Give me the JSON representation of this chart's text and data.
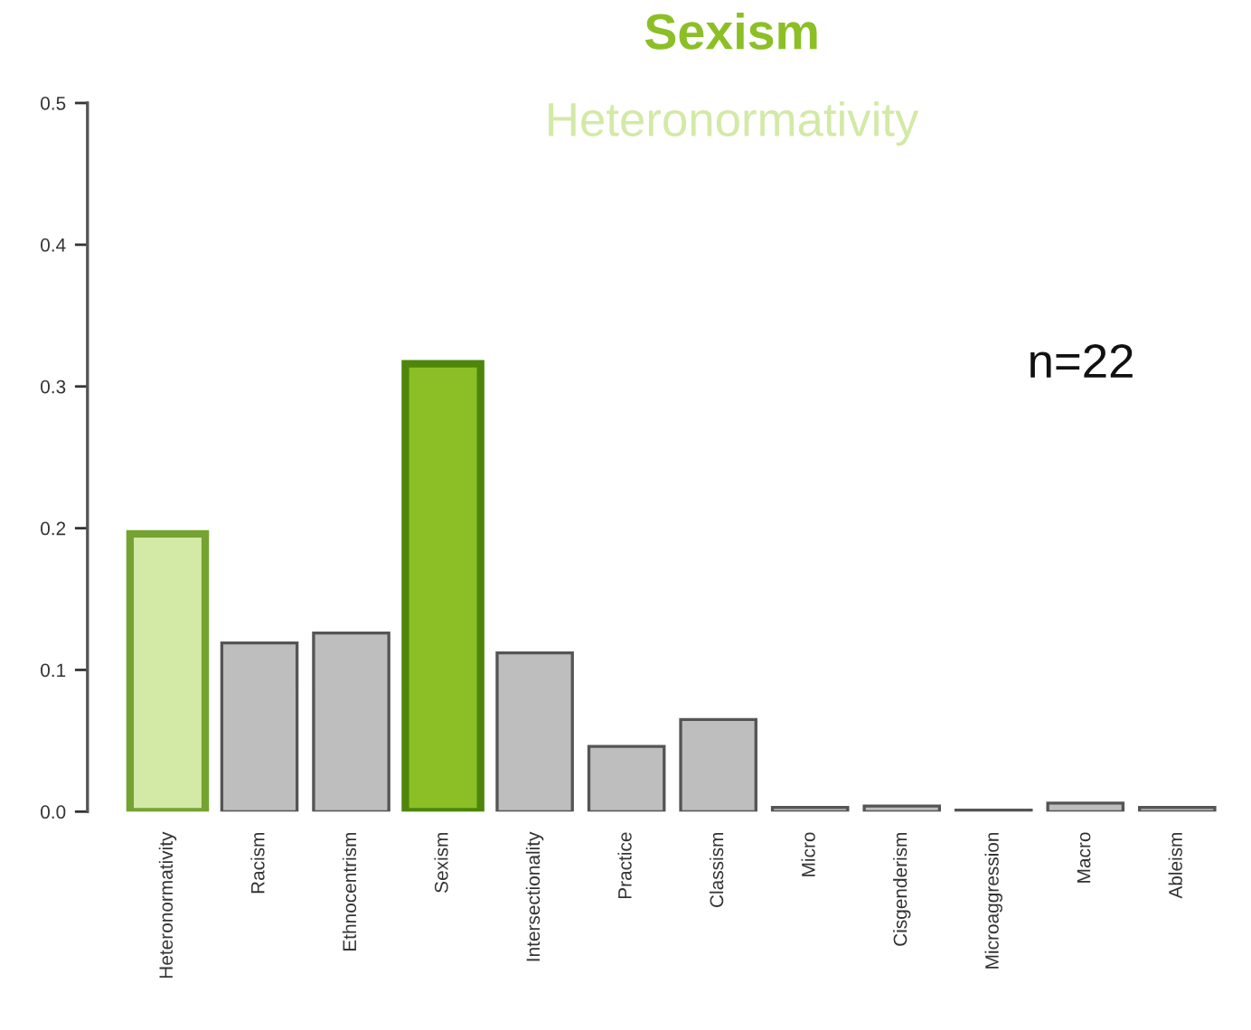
{
  "chart_data": {
    "type": "bar",
    "title": "Sexism",
    "subtitle": "Heteronormativity",
    "categories": [
      "Heteronormativity",
      "Racism",
      "Ethnocentrism",
      "Sexism",
      "Intersectionality",
      "Practice",
      "Classism",
      "Micro",
      "Cisgenderism",
      "Microaggression",
      "Macro",
      "Ableism"
    ],
    "values": [
      0.196,
      0.119,
      0.126,
      0.316,
      0.112,
      0.046,
      0.065,
      0.003,
      0.004,
      0.001,
      0.006,
      0.003
    ],
    "colors": [
      "#d3e9a6",
      "#bebebe",
      "#bebebe",
      "#8cbf26",
      "#bebebe",
      "#bebebe",
      "#bebebe",
      "#bebebe",
      "#bebebe",
      "#bebebe",
      "#bebebe",
      "#bebebe"
    ],
    "ylim": [
      0,
      0.5
    ],
    "yticks": [
      {
        "value": 0,
        "label": "0.0"
      },
      0.1,
      0.2,
      0.3,
      0.4,
      0.5
    ],
    "annotations": [
      "n=22"
    ],
    "grid": false
  }
}
